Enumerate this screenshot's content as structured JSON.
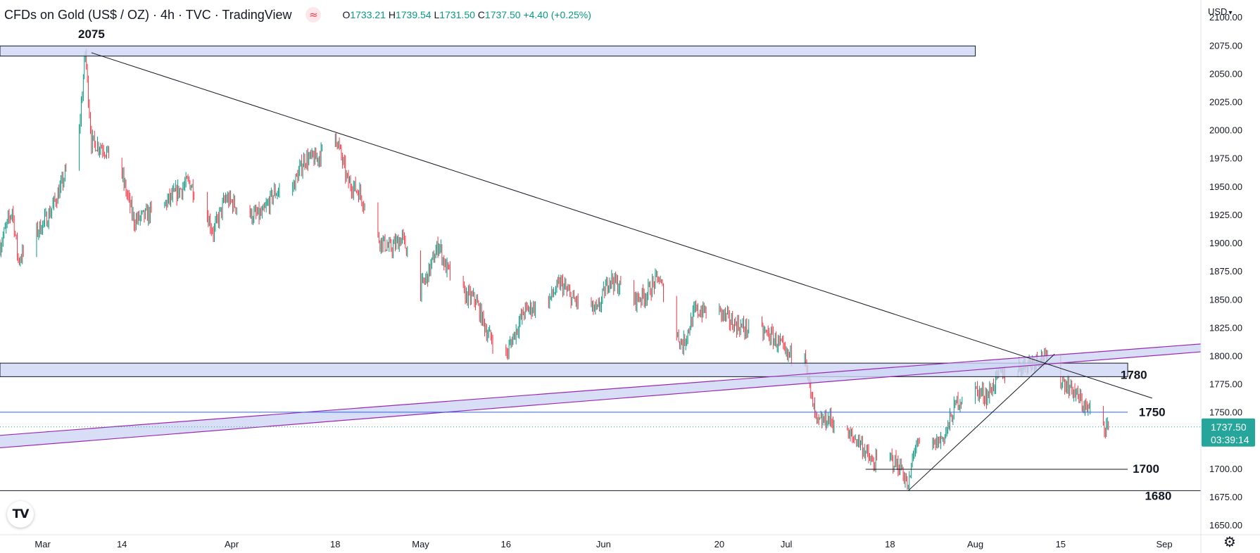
{
  "header": {
    "symbol": "CFDs on Gold (US$ / OZ) · 4h · TVC · TradingView",
    "open_key": "O",
    "open": "1733.21",
    "high_key": "H",
    "high": "1739.54",
    "low_key": "L",
    "low": "1731.50",
    "close_key": "C",
    "close": "1737.50",
    "change": "+4.40 (+0.25%)"
  },
  "currency_label": "USD",
  "logo_text": "TV",
  "colors": {
    "up": "#089981",
    "down": "#f23645",
    "zone_fill": "#cdd6f4",
    "channel_stroke": "#9c27b0",
    "price_line": "#26a69a"
  },
  "chart_data": {
    "type": "candlestick",
    "symbol": "CFDs on Gold (US$ / OZ)",
    "timeframe": "4h",
    "y_axis": {
      "min": 1642,
      "max": 2097,
      "ticks": [
        1650,
        1675,
        1700,
        1725,
        1750,
        1775,
        1800,
        1825,
        1850,
        1875,
        1900,
        1925,
        1950,
        1975,
        2000,
        2025,
        2050,
        2075,
        2100
      ],
      "labels": [
        "1650.00",
        "1675.00",
        "1700.00",
        "1725.00",
        "1750.00",
        "1775.00",
        "1800.00",
        "1825.00",
        "1850.00",
        "1875.00",
        "1900.00",
        "1925.00",
        "1950.00",
        "1975.00",
        "2000.00",
        "2025.00",
        "2050.00",
        "2075.00",
        "2100.00"
      ]
    },
    "x_axis": {
      "start": "2022-02-22",
      "end": "2022-09-07",
      "ticks": [
        {
          "date": "2022-03-01",
          "label": "Mar"
        },
        {
          "date": "2022-03-14",
          "label": "14"
        },
        {
          "date": "2022-04-01",
          "label": "Apr"
        },
        {
          "date": "2022-04-18",
          "label": "18"
        },
        {
          "date": "2022-05-02",
          "label": "May"
        },
        {
          "date": "2022-05-16",
          "label": "16"
        },
        {
          "date": "2022-06-01",
          "label": "Jun"
        },
        {
          "date": "2022-06-20",
          "label": "20"
        },
        {
          "date": "2022-07-01",
          "label": "Jul"
        },
        {
          "date": "2022-07-18",
          "label": "18"
        },
        {
          "date": "2022-08-01",
          "label": "Aug"
        },
        {
          "date": "2022-08-15",
          "label": "15"
        },
        {
          "date": "2022-09-01",
          "label": "Sep"
        }
      ]
    },
    "path_keypoints": [
      [
        "2022-02-22",
        1898
      ],
      [
        "2022-02-24",
        1930
      ],
      [
        "2022-02-25",
        1885
      ],
      [
        "2022-02-28",
        1910
      ],
      [
        "2022-03-02",
        1925
      ],
      [
        "2022-03-04",
        1950
      ],
      [
        "2022-03-07",
        2000
      ],
      [
        "2022-03-08",
        2070
      ],
      [
        "2022-03-09",
        1990
      ],
      [
        "2022-03-11",
        1985
      ],
      [
        "2022-03-14",
        1960
      ],
      [
        "2022-03-16",
        1920
      ],
      [
        "2022-03-18",
        1925
      ],
      [
        "2022-03-21",
        1935
      ],
      [
        "2022-03-23",
        1945
      ],
      [
        "2022-03-25",
        1955
      ],
      [
        "2022-03-28",
        1925
      ],
      [
        "2022-03-29",
        1910
      ],
      [
        "2022-03-31",
        1940
      ],
      [
        "2022-04-04",
        1925
      ],
      [
        "2022-04-06",
        1925
      ],
      [
        "2022-04-08",
        1945
      ],
      [
        "2022-04-11",
        1950
      ],
      [
        "2022-04-13",
        1975
      ],
      [
        "2022-04-15",
        1975
      ],
      [
        "2022-04-18",
        1998
      ],
      [
        "2022-04-20",
        1955
      ],
      [
        "2022-04-22",
        1945
      ],
      [
        "2022-04-25",
        1905
      ],
      [
        "2022-04-27",
        1895
      ],
      [
        "2022-04-29",
        1905
      ],
      [
        "2022-05-02",
        1860
      ],
      [
        "2022-05-03",
        1870
      ],
      [
        "2022-05-05",
        1900
      ],
      [
        "2022-05-06",
        1880
      ],
      [
        "2022-05-09",
        1855
      ],
      [
        "2022-05-11",
        1850
      ],
      [
        "2022-05-13",
        1820
      ],
      [
        "2022-05-16",
        1800
      ],
      [
        "2022-05-17",
        1815
      ],
      [
        "2022-05-19",
        1840
      ],
      [
        "2022-05-23",
        1850
      ],
      [
        "2022-05-25",
        1865
      ],
      [
        "2022-05-27",
        1850
      ],
      [
        "2022-05-31",
        1840
      ],
      [
        "2022-06-02",
        1870
      ],
      [
        "2022-06-06",
        1850
      ],
      [
        "2022-06-08",
        1855
      ],
      [
        "2022-06-10",
        1870
      ],
      [
        "2022-06-13",
        1820
      ],
      [
        "2022-06-14",
        1810
      ],
      [
        "2022-06-16",
        1840
      ],
      [
        "2022-06-20",
        1840
      ],
      [
        "2022-06-22",
        1830
      ],
      [
        "2022-06-24",
        1825
      ],
      [
        "2022-06-28",
        1820
      ],
      [
        "2022-06-30",
        1810
      ],
      [
        "2022-07-01",
        1800
      ],
      [
        "2022-07-04",
        1808
      ],
      [
        "2022-07-05",
        1765
      ],
      [
        "2022-07-06",
        1740
      ],
      [
        "2022-07-08",
        1745
      ],
      [
        "2022-07-11",
        1730
      ],
      [
        "2022-07-13",
        1725
      ],
      [
        "2022-07-15",
        1705
      ],
      [
        "2022-07-18",
        1710
      ],
      [
        "2022-07-20",
        1700
      ],
      [
        "2022-07-21",
        1682
      ],
      [
        "2022-07-22",
        1720
      ],
      [
        "2022-07-25",
        1720
      ],
      [
        "2022-07-27",
        1730
      ],
      [
        "2022-07-29",
        1760
      ],
      [
        "2022-08-01",
        1770
      ],
      [
        "2022-08-03",
        1765
      ],
      [
        "2022-08-05",
        1785
      ],
      [
        "2022-08-08",
        1790
      ],
      [
        "2022-08-10",
        1795
      ],
      [
        "2022-08-12",
        1800
      ],
      [
        "2022-08-15",
        1780
      ],
      [
        "2022-08-17",
        1770
      ],
      [
        "2022-08-19",
        1755
      ],
      [
        "2022-08-22",
        1740
      ],
      [
        "2022-08-23",
        1737.5
      ]
    ],
    "last_price": {
      "value": 1737.5,
      "label": "1737.50",
      "countdown": "03:39:14"
    },
    "annotations": {
      "zones": [
        {
          "from": "2022-02-22",
          "to": "2022-08-01",
          "low": 2066,
          "high": 2075
        },
        {
          "from": "2022-02-22",
          "to": "2022-08-26",
          "low": 1782,
          "high": 1794
        }
      ],
      "hlines": [
        {
          "from": "2022-02-22",
          "to": "2022-08-26",
          "y": 1750.5,
          "color": "#2962ff"
        },
        {
          "from": "2022-07-14",
          "to": "2022-08-26",
          "y": 1700,
          "color": "#131722"
        },
        {
          "from": "2022-02-22",
          "to": "2022-09-07",
          "y": 1681,
          "color": "#131722"
        }
      ],
      "trendlines": [
        {
          "from": [
            "2022-03-09",
            2069
          ],
          "to": [
            "2022-08-30",
            1763
          ]
        },
        {
          "from": [
            "2022-07-21",
            1681
          ],
          "to": [
            "2022-08-14",
            1802
          ]
        }
      ],
      "channel": {
        "from": "2022-02-22",
        "to": "2022-09-07",
        "lower": [
          1719,
          1804
        ],
        "upper": [
          1730,
          1811
        ]
      },
      "labels": [
        {
          "text": "2075",
          "date": "2022-03-09",
          "y": 2082
        },
        {
          "text": "1780",
          "date": "2022-08-27",
          "y": 1780
        },
        {
          "text": "1750",
          "date": "2022-08-30",
          "y": 1747
        },
        {
          "text": "1700",
          "date": "2022-08-29",
          "y": 1697
        },
        {
          "text": "1680",
          "date": "2022-08-31",
          "y": 1673
        }
      ]
    }
  }
}
